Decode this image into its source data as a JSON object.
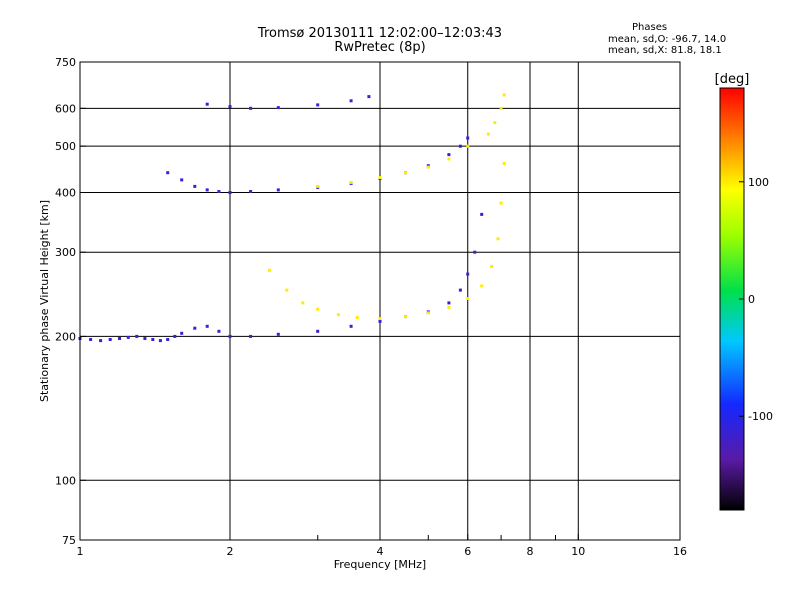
{
  "header": {
    "title_line1": "Tromsø 20130111 12:02:00–12:03:43",
    "title_line2": "RwPretec (8p)",
    "stats_title": "Phases",
    "stats_line1": "mean, sd,O:  -96.7, 14.0",
    "stats_line2": "mean, sd,X:   81.8, 18.1"
  },
  "chart_data": {
    "type": "scatter",
    "xlabel": "Frequency [MHz]",
    "ylabel": "Stationary phase Virtual Height [km]",
    "xscale": "log",
    "yscale": "log",
    "xlim": [
      1,
      16
    ],
    "ylim": [
      75,
      750
    ],
    "x_ticks": [
      1,
      2,
      4,
      6,
      8,
      10,
      16
    ],
    "x_tick_labels": [
      "1",
      "2",
      "4",
      "6",
      "8",
      "10",
      "16"
    ],
    "x_minor_ticks": [
      3,
      5,
      7,
      9
    ],
    "y_ticks": [
      75,
      100,
      200,
      300,
      400,
      500,
      600,
      750
    ],
    "y_tick_labels": [
      "75",
      "100",
      "200",
      "300",
      "400",
      "500",
      "600",
      "750"
    ],
    "grid": true,
    "colorbar": {
      "label": "[deg]",
      "min": -180,
      "max": 180,
      "ticks": [
        -100,
        0,
        100
      ],
      "tick_labels": [
        "-100",
        "0",
        "100"
      ],
      "colormap": "rainbow"
    },
    "series": [
      {
        "phase_deg": -110,
        "x": [
          1.0,
          1.05,
          1.1,
          1.15,
          1.2,
          1.25,
          1.3,
          1.35,
          1.4,
          1.45,
          1.5,
          1.55,
          1.6,
          1.7,
          1.8,
          1.9,
          2.0,
          2.2,
          2.5,
          3.0,
          3.5,
          4.0,
          4.5,
          5.0,
          5.5,
          5.8,
          6.0,
          6.2,
          6.4
        ],
        "y": [
          198,
          197,
          196,
          197,
          198,
          199,
          200,
          198,
          197,
          196,
          197,
          200,
          203,
          208,
          210,
          205,
          200,
          200,
          202,
          205,
          210,
          215,
          220,
          225,
          235,
          250,
          270,
          300,
          360
        ]
      },
      {
        "phase_deg": -110,
        "x": [
          1.5,
          1.6,
          1.7,
          1.8,
          1.9,
          2.0,
          2.2,
          2.5,
          3.0,
          3.5,
          4.0,
          4.5,
          5.0,
          5.5,
          5.8,
          6.0
        ],
        "y": [
          440,
          425,
          412,
          405,
          402,
          400,
          402,
          405,
          410,
          418,
          428,
          440,
          455,
          480,
          500,
          520
        ]
      },
      {
        "phase_deg": -110,
        "x": [
          1.8,
          2.0,
          2.2,
          2.5,
          3.0,
          3.5,
          3.8
        ],
        "y": [
          612,
          605,
          600,
          602,
          610,
          622,
          635
        ]
      },
      {
        "phase_deg": 100,
        "x": [
          2.4,
          2.6,
          2.8,
          3.0,
          3.3,
          3.6,
          4.0,
          4.5,
          5.0,
          5.5,
          6.0,
          6.4,
          6.7,
          6.9,
          7.0,
          7.1
        ],
        "y": [
          275,
          250,
          235,
          228,
          222,
          219,
          218,
          220,
          224,
          230,
          240,
          255,
          280,
          320,
          380,
          460
        ]
      },
      {
        "phase_deg": 100,
        "x": [
          3.0,
          3.5,
          4.0,
          4.5,
          5.0,
          5.5,
          6.0
        ],
        "y": [
          412,
          420,
          430,
          440,
          452,
          470,
          500
        ]
      },
      {
        "phase_deg": 100,
        "x": [
          6.6,
          6.8,
          7.0,
          7.1
        ],
        "y": [
          530,
          560,
          600,
          640
        ]
      }
    ]
  }
}
